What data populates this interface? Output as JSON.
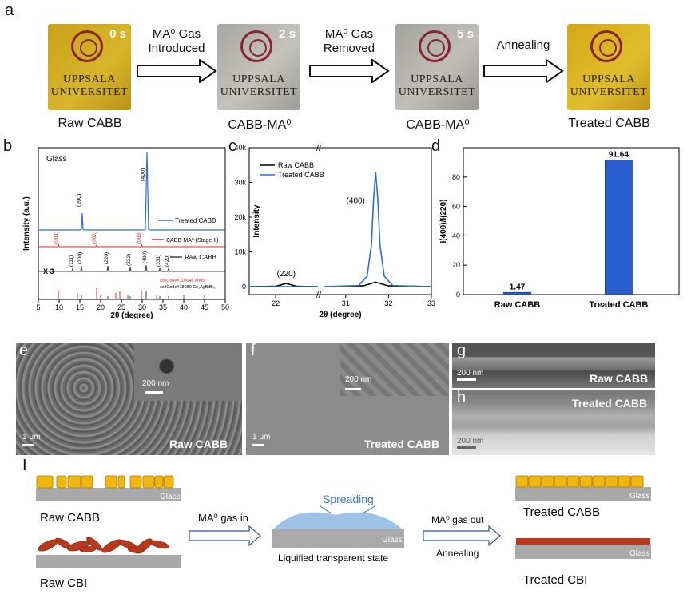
{
  "panels": {
    "a": "a",
    "b": "b",
    "c": "c",
    "d": "d",
    "e": "e",
    "f": "f",
    "g": "g",
    "h": "h",
    "i": "I"
  },
  "panel_a": {
    "photos": [
      {
        "time": "0 s",
        "line1": "UPPSALA",
        "line2": "UNIVERSITET",
        "caption": "Raw CABB"
      },
      {
        "time": "2 s",
        "line1": "UPPSALA",
        "line2": "UNIVERSITET",
        "caption": "CABB-MA⁰"
      },
      {
        "time": "5 s",
        "line1": "UPPSALA",
        "line2": "UNIVERSITET",
        "caption": "CABB-MA⁰"
      },
      {
        "time": "",
        "line1": "UPPSALA",
        "line2": "UNIVERSITET",
        "caption": "Treated CABB"
      }
    ],
    "steps": [
      {
        "l1": "MA⁰ Gas",
        "l2": "Introduced"
      },
      {
        "l1": "MA⁰ Gas",
        "l2": "Removed"
      },
      {
        "l1": "Annealing",
        "l2": ""
      }
    ]
  },
  "panel_b": {
    "title": "Glass",
    "xlabel": "2θ (degree)",
    "ylabel": "Intensity (a.u.)",
    "xticks": [
      "5",
      "10",
      "15",
      "20",
      "25",
      "30",
      "35",
      "40",
      "45",
      "50"
    ],
    "x3": "X 3",
    "legend_treated": "Treated CABB",
    "legend_mao": "CABB-MA⁰ (Stage II)",
    "legend_raw": "Raw CABB",
    "ref1": "collCode#110646 MABr",
    "ref2": "collCode#18989 Cs₂AgBiBr₆",
    "peaks_treated": [
      "(200)",
      "(400)"
    ],
    "peaks_mao": [
      "(001)",
      "(002)",
      "(003)"
    ],
    "peaks_raw": [
      "(111)",
      "(200)",
      "(220)",
      "(222)",
      "(400)",
      "(331)",
      "(420)"
    ]
  },
  "chart_data": [
    {
      "type": "line",
      "title": "",
      "xlabel": "2θ (degree)",
      "ylabel": "Intensity",
      "x_segments": [
        [
          21.5,
          22.8
        ],
        [
          30.5,
          33
        ]
      ],
      "xticks": [
        "22",
        "31",
        "32",
        "33"
      ],
      "yticks": [
        "0",
        "10k",
        "20k",
        "30k",
        "40k"
      ],
      "ylim": [
        0,
        40000
      ],
      "series": [
        {
          "name": "Raw CABB",
          "color": "#000000",
          "x": [
            21.5,
            22.0,
            22.1,
            22.2,
            22.3,
            22.4,
            22.8,
            30.5,
            31.4,
            31.6,
            31.7,
            31.8,
            32.0,
            33.0
          ],
          "y": [
            0,
            100,
            500,
            900,
            500,
            100,
            0,
            0,
            200,
            900,
            1300,
            900,
            200,
            0
          ]
        },
        {
          "name": "Treated CABB",
          "color": "#2b6fd6",
          "x": [
            21.5,
            22.8,
            30.5,
            31.3,
            31.5,
            31.6,
            31.65,
            31.7,
            31.75,
            31.8,
            31.9,
            32.1,
            33.0
          ],
          "y": [
            0,
            0,
            0,
            300,
            3000,
            12000,
            25000,
            33000,
            25000,
            12000,
            3000,
            300,
            0
          ]
        }
      ],
      "annotations": [
        "(220)",
        "(400)"
      ]
    },
    {
      "type": "bar",
      "categories": [
        "Raw CABB",
        "Treated CABB"
      ],
      "values": [
        1.47,
        91.64
      ],
      "value_labels": [
        "1.47",
        "91.64"
      ],
      "ylabel": "I(400)/I(220)",
      "yticks": [
        "0",
        "20",
        "40",
        "60",
        "80"
      ],
      "ylim": [
        0,
        100
      ]
    }
  ],
  "panel_e": {
    "scale_inset": "200 nm",
    "scale_main": "1 μm",
    "label": "Raw CABB"
  },
  "panel_f": {
    "scale_inset": "200 nm",
    "scale_main": "1 μm",
    "label": "Treated CABB"
  },
  "panel_g": {
    "scale": "200 nm",
    "label": "Raw CABB"
  },
  "panel_h": {
    "scale": "200 nm",
    "label": "Treated CABB"
  },
  "panel_i": {
    "glass": "Glass",
    "raw_cabb": "Raw CABB",
    "raw_cbi": "Raw CBI",
    "gas_in": "MA⁰ gas in",
    "spreading": "Spreading",
    "liquified": "Liquified  transparent state",
    "gas_out": "MA⁰ gas out",
    "annealing": "Annealing",
    "treated_cabb": "Treated CABB",
    "treated_cbi": "Treated CBI"
  }
}
